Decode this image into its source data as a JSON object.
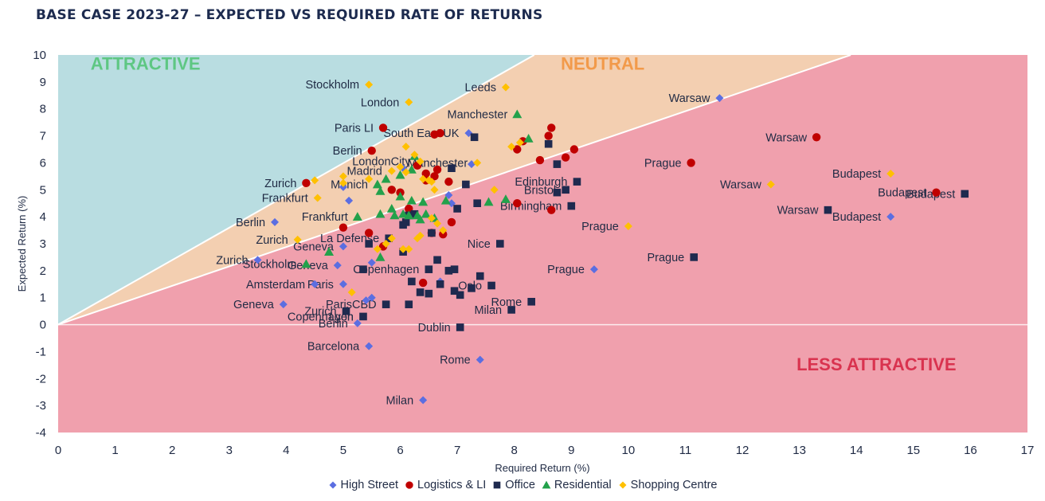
{
  "chart_data": {
    "type": "scatter",
    "title": "BASE CASE 2023-27 – EXPECTED VS REQUIRED RATE OF RETURNS",
    "xlabel": "Required Return (%)",
    "ylabel": "Expected Return (%)",
    "xlim": [
      0,
      17
    ],
    "ylim": [
      -4,
      10
    ],
    "xticks": [
      "0",
      "1",
      "2",
      "3",
      "4",
      "5",
      "6",
      "7",
      "8",
      "9",
      "10",
      "11",
      "12",
      "13",
      "14",
      "15",
      "16",
      "17"
    ],
    "yticks": [
      "10",
      "9",
      "8",
      "7",
      "6",
      "5",
      "4",
      "3",
      "2",
      "1",
      "0",
      "-1",
      "-2",
      "-3",
      "-4"
    ],
    "legend_position": "bottom",
    "zones": [
      {
        "label": "ATTRACTIVE",
        "color": "#5ec783",
        "fill": "#b9dde1"
      },
      {
        "label": "NEUTRAL",
        "color": "#f29a4a",
        "fill": "#f3cfb1"
      },
      {
        "label": "LESS ATTRACTIVE",
        "color": "#d9334f",
        "fill": "#f0a0ad"
      }
    ],
    "series": [
      {
        "name": "High Street",
        "marker": "diamond",
        "color": "#5b6ee1",
        "points": [
          [
            11.6,
            8.4
          ],
          [
            7.25,
            5.95
          ],
          [
            7.2,
            7.1
          ],
          [
            5.0,
            5.1
          ],
          [
            5.1,
            4.6
          ],
          [
            3.8,
            3.8
          ],
          [
            5.0,
            2.9
          ],
          [
            5.5,
            2.3
          ],
          [
            3.5,
            2.4
          ],
          [
            4.9,
            2.2
          ],
          [
            4.5,
            1.5
          ],
          [
            5.0,
            1.5
          ],
          [
            5.4,
            0.9
          ],
          [
            5.5,
            1.0
          ],
          [
            3.95,
            0.75
          ],
          [
            5.25,
            0.05
          ],
          [
            5.45,
            -0.8
          ],
          [
            7.4,
            -1.3
          ],
          [
            6.4,
            -2.8
          ],
          [
            9.4,
            2.05
          ],
          [
            14.6,
            4.0
          ],
          [
            6.9,
            4.5
          ],
          [
            6.85,
            4.8
          ],
          [
            6.05,
            5.8
          ],
          [
            6.7,
            1.6
          ]
        ],
        "labels": [
          {
            "text": "Warsaw",
            "i": 0
          },
          {
            "text": "South East UK",
            "i": 2
          },
          {
            "text": "Berlin",
            "i": 5
          },
          {
            "text": "Geneva",
            "i": 6
          },
          {
            "text": "Zurich",
            "i": 8
          },
          {
            "text": "Geneva",
            "i": 9
          },
          {
            "text": "Amsterdam",
            "i": 10
          },
          {
            "text": "Paris",
            "i": 11
          },
          {
            "text": "Geneva",
            "i": 14
          },
          {
            "text": "Berlin",
            "i": 15
          },
          {
            "text": "Barcelona",
            "i": 16
          },
          {
            "text": "Rome",
            "i": 17
          },
          {
            "text": "Milan",
            "i": 18
          },
          {
            "text": "Prague",
            "i": 19
          },
          {
            "text": "Budapest",
            "i": 20
          }
        ]
      },
      {
        "name": "Logistics & LI",
        "marker": "circle",
        "color": "#c00000",
        "points": [
          [
            5.7,
            7.3
          ],
          [
            4.35,
            5.25
          ],
          [
            5.5,
            6.45
          ],
          [
            6.7,
            7.1
          ],
          [
            6.6,
            7.05
          ],
          [
            8.65,
            7.3
          ],
          [
            8.6,
            7.0
          ],
          [
            8.15,
            6.8
          ],
          [
            8.05,
            6.5
          ],
          [
            8.45,
            6.1
          ],
          [
            9.05,
            6.5
          ],
          [
            8.9,
            6.2
          ],
          [
            11.1,
            6.0
          ],
          [
            13.3,
            6.95
          ],
          [
            15.4,
            4.9
          ],
          [
            8.05,
            4.5
          ],
          [
            8.65,
            4.25
          ],
          [
            6.0,
            4.9
          ],
          [
            5.85,
            5.0
          ],
          [
            6.3,
            5.9
          ],
          [
            6.6,
            5.5
          ],
          [
            6.65,
            5.75
          ],
          [
            6.85,
            5.3
          ],
          [
            6.45,
            5.6
          ],
          [
            6.15,
            4.3
          ],
          [
            5.0,
            3.6
          ],
          [
            5.45,
            3.4
          ],
          [
            6.55,
            3.4
          ],
          [
            6.9,
            3.8
          ],
          [
            6.75,
            3.35
          ],
          [
            5.7,
            2.9
          ],
          [
            6.4,
            1.55
          ],
          [
            6.45,
            5.35
          ]
        ],
        "labels": [
          {
            "text": "Paris LI",
            "i": 0
          },
          {
            "text": "Zurich",
            "i": 1
          },
          {
            "text": "Berlin",
            "i": 2
          },
          {
            "text": "Prague",
            "i": 12
          },
          {
            "text": "Warsaw",
            "i": 13
          },
          {
            "text": "Budapest",
            "i": 14
          }
        ]
      },
      {
        "name": "Office",
        "marker": "square",
        "color": "#1f2a4f",
        "points": [
          [
            7.3,
            6.95
          ],
          [
            8.6,
            6.7
          ],
          [
            8.75,
            5.95
          ],
          [
            9.1,
            5.3
          ],
          [
            8.9,
            5.0
          ],
          [
            8.75,
            4.9
          ],
          [
            9.0,
            4.4
          ],
          [
            6.9,
            5.8
          ],
          [
            7.15,
            5.2
          ],
          [
            7.0,
            4.3
          ],
          [
            7.35,
            4.5
          ],
          [
            6.55,
            3.4
          ],
          [
            6.1,
            3.8
          ],
          [
            7.75,
            3.0
          ],
          [
            11.15,
            2.5
          ],
          [
            13.5,
            4.25
          ],
          [
            15.9,
            4.85
          ],
          [
            5.45,
            3.0
          ],
          [
            5.8,
            3.2
          ],
          [
            6.65,
            2.4
          ],
          [
            6.05,
            2.7
          ],
          [
            5.35,
            2.05
          ],
          [
            6.95,
            2.05
          ],
          [
            7.4,
            1.8
          ],
          [
            7.6,
            1.45
          ],
          [
            6.5,
            2.05
          ],
          [
            6.5,
            1.15
          ],
          [
            6.7,
            1.5
          ],
          [
            6.95,
            1.25
          ],
          [
            7.05,
            1.1
          ],
          [
            7.25,
            1.35
          ],
          [
            8.3,
            0.85
          ],
          [
            7.95,
            0.55
          ],
          [
            5.75,
            0.75
          ],
          [
            6.15,
            0.75
          ],
          [
            5.05,
            0.5
          ],
          [
            5.35,
            0.3
          ],
          [
            7.05,
            -0.1
          ],
          [
            6.15,
            4.05
          ],
          [
            6.25,
            4.1
          ],
          [
            6.05,
            3.7
          ],
          [
            6.85,
            2.0
          ],
          [
            6.35,
            1.2
          ],
          [
            6.2,
            1.6
          ]
        ],
        "labels": [
          {
            "text": "Edinburgh",
            "i": 3
          },
          {
            "text": "Bristol",
            "i": 4
          },
          {
            "text": "Birmingham",
            "i": 6
          },
          {
            "text": "Nice",
            "i": 13
          },
          {
            "text": "Prague",
            "i": 14
          },
          {
            "text": "Warsaw",
            "i": 15
          },
          {
            "text": "Budapest",
            "i": 16
          },
          {
            "text": "La Defense",
            "i": 18
          },
          {
            "text": "Copenhagen",
            "i": 25
          },
          {
            "text": "Oslo",
            "i": 24
          },
          {
            "text": "Rome",
            "i": 31
          },
          {
            "text": "Milan",
            "i": 32
          },
          {
            "text": "ParisCBD",
            "i": 33
          },
          {
            "text": "Lyon",
            "i": 36
          },
          {
            "text": "Zurich",
            "i": 35
          },
          {
            "text": "Copenhagen",
            "i": 36
          },
          {
            "text": "Dublin",
            "i": 37
          }
        ]
      },
      {
        "name": "Residential",
        "marker": "triangle",
        "color": "#23a14b",
        "points": [
          [
            8.05,
            7.8
          ],
          [
            8.25,
            6.9
          ],
          [
            6.25,
            6.25
          ],
          [
            5.6,
            5.2
          ],
          [
            5.65,
            4.95
          ],
          [
            5.75,
            5.4
          ],
          [
            6.0,
            5.55
          ],
          [
            6.2,
            5.75
          ],
          [
            6.0,
            4.75
          ],
          [
            6.2,
            4.6
          ],
          [
            6.4,
            4.55
          ],
          [
            5.85,
            4.3
          ],
          [
            5.65,
            4.1
          ],
          [
            5.9,
            4.05
          ],
          [
            6.05,
            4.1
          ],
          [
            6.15,
            4.05
          ],
          [
            6.3,
            4.05
          ],
          [
            6.45,
            4.1
          ],
          [
            6.6,
            3.95
          ],
          [
            6.35,
            3.9
          ],
          [
            7.55,
            4.55
          ],
          [
            7.85,
            4.65
          ],
          [
            5.25,
            4.0
          ],
          [
            4.75,
            2.7
          ],
          [
            4.35,
            2.25
          ],
          [
            5.65,
            2.5
          ],
          [
            6.8,
            4.6
          ]
        ],
        "labels": [
          {
            "text": "Manchester",
            "i": 0
          },
          {
            "text": "Munich",
            "i": 3
          },
          {
            "text": "Frankfurt",
            "i": 22
          },
          {
            "text": "Stockholm",
            "i": 24
          }
        ]
      },
      {
        "name": "Shopping Centre",
        "marker": "diamond",
        "color": "#ffc000",
        "points": [
          [
            5.45,
            8.9
          ],
          [
            7.85,
            8.8
          ],
          [
            6.15,
            8.25
          ],
          [
            6.1,
            6.6
          ],
          [
            6.25,
            6.3
          ],
          [
            6.35,
            6.05
          ],
          [
            6.0,
            5.85
          ],
          [
            6.1,
            5.65
          ],
          [
            5.85,
            5.7
          ],
          [
            5.45,
            5.4
          ],
          [
            5.0,
            5.5
          ],
          [
            5.0,
            5.25
          ],
          [
            4.5,
            5.35
          ],
          [
            6.4,
            5.4
          ],
          [
            6.5,
            5.35
          ],
          [
            6.55,
            5.3
          ],
          [
            6.6,
            5.0
          ],
          [
            7.35,
            6.0
          ],
          [
            7.65,
            5.0
          ],
          [
            7.95,
            6.6
          ],
          [
            8.1,
            6.75
          ],
          [
            10.0,
            3.65
          ],
          [
            12.5,
            5.2
          ],
          [
            14.6,
            5.6
          ],
          [
            4.55,
            4.7
          ],
          [
            4.2,
            3.15
          ],
          [
            5.6,
            2.8
          ],
          [
            5.85,
            3.2
          ],
          [
            5.75,
            3.0
          ],
          [
            6.05,
            2.8
          ],
          [
            6.15,
            2.8
          ],
          [
            6.35,
            3.3
          ],
          [
            6.55,
            3.95
          ],
          [
            6.65,
            3.75
          ],
          [
            5.15,
            1.2
          ],
          [
            6.75,
            3.5
          ],
          [
            6.3,
            3.2
          ]
        ],
        "labels": [
          {
            "text": "Stockholm",
            "i": 0
          },
          {
            "text": "Leeds",
            "i": 1
          },
          {
            "text": "London",
            "i": 2
          },
          {
            "text": "LondonCity",
            "i": 5
          },
          {
            "text": "Madrid",
            "i": 8
          },
          {
            "text": "Manchester",
            "i": 17
          },
          {
            "text": "Prague",
            "i": 21
          },
          {
            "text": "Warsaw",
            "i": 22
          },
          {
            "text": "Budapest",
            "i": 23
          },
          {
            "text": "Frankfurt",
            "i": 24
          },
          {
            "text": "Zurich",
            "i": 25
          }
        ]
      }
    ]
  }
}
